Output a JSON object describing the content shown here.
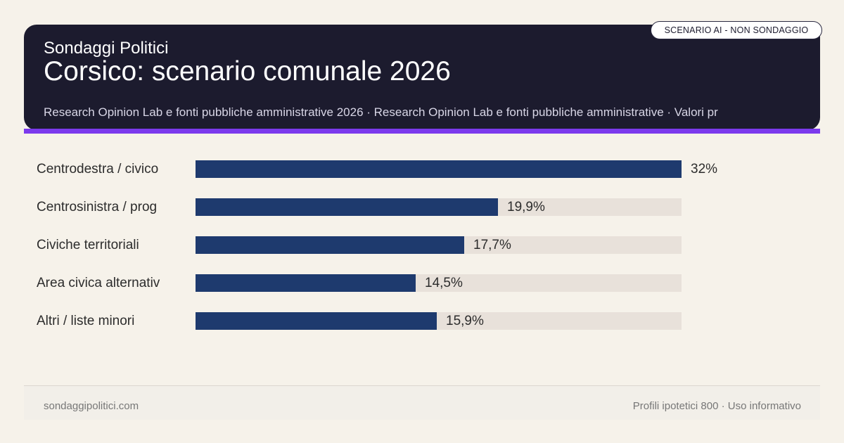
{
  "header": {
    "brand": "Sondaggi Politici",
    "title": "Corsico: scenario comunale 2026",
    "subtitle": "Research Opinion Lab e fonti pubbliche amministrative 2026 · Research Opinion Lab e fonti pubbliche amministrative · Valori pr",
    "badge": "SCENARIO AI - NON SONDAGGIO"
  },
  "chart_data": {
    "type": "bar",
    "orientation": "horizontal",
    "categories": [
      "Centrodestra / civico",
      "Centrosinistra / prog",
      "Civiche territoriali",
      "Area civica alternativ",
      "Altri / liste minori"
    ],
    "values": [
      32,
      19.9,
      17.7,
      14.5,
      15.9
    ],
    "value_labels": [
      "32%",
      "19,9%",
      "17,7%",
      "14,5%",
      "15,9%"
    ],
    "xlim": [
      0,
      32
    ],
    "bar_color": "#1e3a6e",
    "track_color": "#e8e1da"
  },
  "footer": {
    "left": "sondaggipolitici.com",
    "right": "Profili ipotetici 800 · Uso informativo"
  },
  "colors": {
    "header_bg": "#1c1b2e",
    "accent": "#7c3aed",
    "page_bg": "#f6f2ea"
  }
}
